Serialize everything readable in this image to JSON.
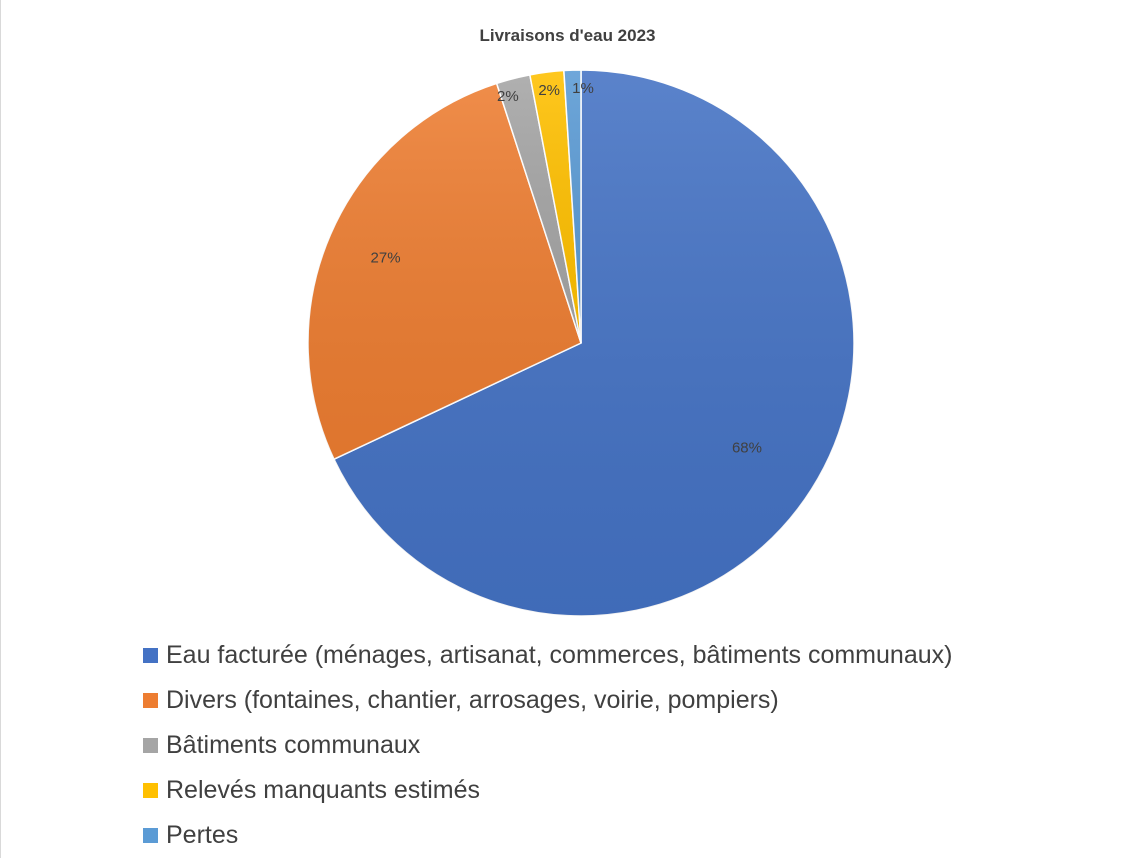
{
  "chart_data": {
    "type": "pie",
    "title": "Livraisons d'eau 2023",
    "slices": [
      {
        "name": "Eau facturée (ménages, artisanat, commerces, bâtiments communaux)",
        "value": 68,
        "label": "68%",
        "color": "#4472c4"
      },
      {
        "name": "Divers (fontaines, chantier, arrosages, voirie, pompiers)",
        "value": 27,
        "label": "27%",
        "color": "#ed7d31"
      },
      {
        "name": "Bâtiments communaux",
        "value": 2,
        "label": "2%",
        "color": "#a5a5a5"
      },
      {
        "name": "Relevés manquants estimés",
        "value": 2,
        "label": "2%",
        "color": "#ffc000"
      },
      {
        "name": "Pertes",
        "value": 1,
        "label": "1%",
        "color": "#5b9bd5"
      }
    ],
    "legend_position": "bottom",
    "start_angle": "12 o'clock",
    "direction": "clockwise"
  }
}
